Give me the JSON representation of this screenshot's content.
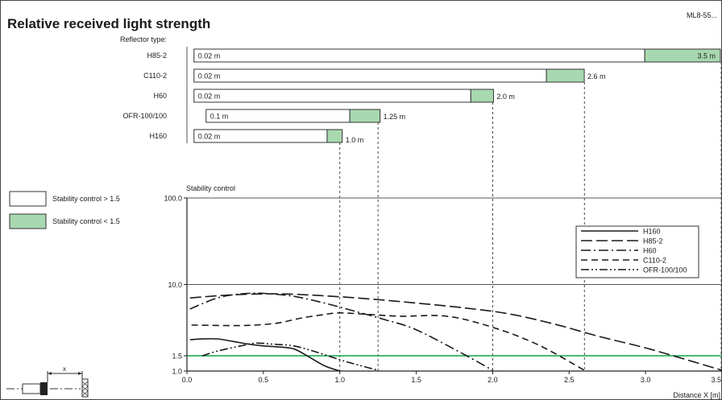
{
  "title": "Relative received light strength",
  "doc_id": "ML8-55...",
  "reflector_type_label": "Reflector type:",
  "colors": {
    "stable_fill": "#ffffff",
    "unstable_fill": "#a8d8b0",
    "threshold_line": "#22aa55",
    "ink": "#1a1a1a"
  },
  "range_bars": [
    {
      "reflector": "H85-2",
      "min_label": "0.02 m",
      "min": 0.02,
      "stable_to": 3.0,
      "max": 3.5,
      "max_label": "3.5 m"
    },
    {
      "reflector": "C110-2",
      "min_label": "0.02 m",
      "min": 0.02,
      "stable_to": 2.35,
      "max": 2.6,
      "max_label": "2.6 m"
    },
    {
      "reflector": "H60",
      "min_label": "0.02 m",
      "min": 0.02,
      "stable_to": 1.85,
      "max": 2.0,
      "max_label": "2.0 m"
    },
    {
      "reflector": "OFR-100/100",
      "min_label": "0.1 m",
      "min": 0.1,
      "stable_to": 1.05,
      "max": 1.25,
      "max_label": "1.25 m"
    },
    {
      "reflector": "H160",
      "min_label": "0.02 m",
      "min": 0.02,
      "stable_to": 0.9,
      "max": 1.0,
      "max_label": "1.0 m"
    }
  ],
  "legend_boxes": [
    {
      "label": "Stability control > 1.5",
      "kind": "stable"
    },
    {
      "label": "Stability control < 1.5",
      "kind": "unstable"
    }
  ],
  "chart_data": {
    "type": "line",
    "ylabel": "Stability control",
    "xlabel": "Distance X [m]",
    "xlim": [
      0,
      3.5
    ],
    "ylim": [
      1.0,
      100.0
    ],
    "yscale": "log",
    "x_ticks": [
      {
        "value": 0.0,
        "label": "0.0"
      },
      {
        "value": 0.5,
        "label": "0.5"
      },
      {
        "value": 1.0,
        "label": "1.0"
      },
      {
        "value": 1.5,
        "label": "1.5"
      },
      {
        "value": 2.0,
        "label": "2.0"
      },
      {
        "value": 2.5,
        "label": "2.5"
      },
      {
        "value": 3.0,
        "label": "3.0"
      },
      {
        "value": 3.5,
        "label": "3.5"
      }
    ],
    "y_ticks": [
      {
        "value": 100.0,
        "label": "100.0"
      },
      {
        "value": 10.0,
        "label": "10.0"
      },
      {
        "value": 1.5,
        "label": "1.5"
      },
      {
        "value": 1.0,
        "label": "1.0"
      }
    ],
    "threshold": 1.5,
    "max_range_markers": [
      1.0,
      1.25,
      2.0,
      2.6,
      3.5
    ],
    "series": [
      {
        "name": "H160",
        "dash": "solid",
        "x": [
          0.02,
          0.1,
          0.2,
          0.3,
          0.4,
          0.5,
          0.6,
          0.7,
          0.8,
          0.9,
          1.0
        ],
        "y": [
          2.3,
          2.35,
          2.35,
          2.2,
          2.05,
          1.95,
          1.9,
          1.8,
          1.45,
          1.15,
          0.98
        ]
      },
      {
        "name": "H85-2",
        "dash": "long",
        "x": [
          0.02,
          0.3,
          0.6,
          0.9,
          1.2,
          1.5,
          1.8,
          2.1,
          2.4,
          2.7,
          3.0,
          3.3,
          3.5
        ],
        "y": [
          7.0,
          7.6,
          7.8,
          7.4,
          6.8,
          6.1,
          5.4,
          4.6,
          3.5,
          2.5,
          1.85,
          1.3,
          1.02
        ]
      },
      {
        "name": "H60",
        "dash": "dashdot",
        "x": [
          0.02,
          0.1,
          0.2,
          0.3,
          0.4,
          0.5,
          0.7,
          0.9,
          1.1,
          1.3,
          1.5,
          1.8,
          2.0
        ],
        "y": [
          5.2,
          6.0,
          7.0,
          7.6,
          7.9,
          7.9,
          7.3,
          6.1,
          4.9,
          3.9,
          3.0,
          1.6,
          1.02
        ]
      },
      {
        "name": "C110-2",
        "dash": "medium",
        "x": [
          0.03,
          0.3,
          0.45,
          0.6,
          0.75,
          0.9,
          1.0,
          1.2,
          1.4,
          1.7,
          2.0,
          2.3,
          2.6
        ],
        "y": [
          3.4,
          3.35,
          3.4,
          3.6,
          4.1,
          4.5,
          4.7,
          4.5,
          4.3,
          4.3,
          3.2,
          2.0,
          1.02
        ]
      },
      {
        "name": "OFR-100/100",
        "dash": "dashdotdot",
        "x": [
          0.1,
          0.2,
          0.35,
          0.45,
          0.55,
          0.7,
          0.85,
          1.0,
          1.1,
          1.25
        ],
        "y": [
          1.5,
          1.7,
          1.95,
          2.1,
          2.05,
          1.95,
          1.65,
          1.35,
          1.2,
          1.02
        ]
      }
    ]
  }
}
